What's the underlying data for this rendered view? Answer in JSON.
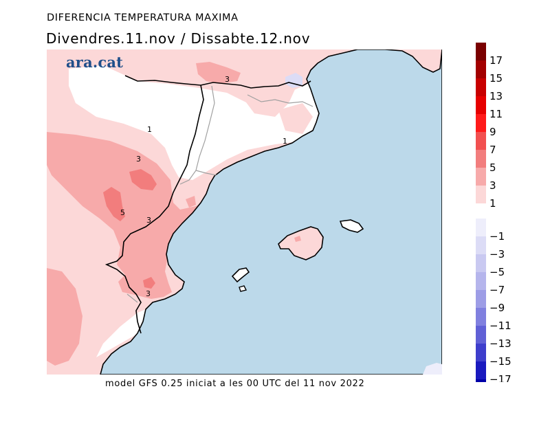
{
  "map": {
    "title": "DIFERENCIA TEMPERATURA MAXIMA",
    "subtitle": "Divendres.11.nov / Dissabte.12.nov",
    "footer": "model GFS 0.25 iniciat a les 00 UTC del 11 nov 2022",
    "logo": "ara.cat",
    "contour_labels": [
      "3",
      "1",
      "3",
      "1",
      "5",
      "3",
      "3"
    ]
  },
  "legend": {
    "positive_labels": [
      "17",
      "15",
      "13",
      "11",
      "9",
      "7",
      "5",
      "3",
      "1"
    ],
    "negative_labels": [
      "−1",
      "−3",
      "−5",
      "−7",
      "−9",
      "−11",
      "−13",
      "−15",
      "−17"
    ],
    "positive_colors": [
      "#7a0000",
      "#a30000",
      "#c80000",
      "#e60000",
      "#ff1a1a",
      "#f25050",
      "#f27d7d",
      "#f7aaaa",
      "#fcd8d8"
    ],
    "negative_colors": [
      "#eeeefb",
      "#dcdcf6",
      "#c9c9f1",
      "#b5b5ec",
      "#9d9de6",
      "#8080df",
      "#6060d6",
      "#3e3ecc",
      "#1a1abf",
      "#0000a8"
    ]
  },
  "colors": {
    "sea": "#bcd9ea",
    "band_0_1": "#ffffff",
    "band_1_3": "#fcd8d8",
    "band_3_5": "#f7aaaa",
    "band_5_7": "#f27d7d"
  }
}
